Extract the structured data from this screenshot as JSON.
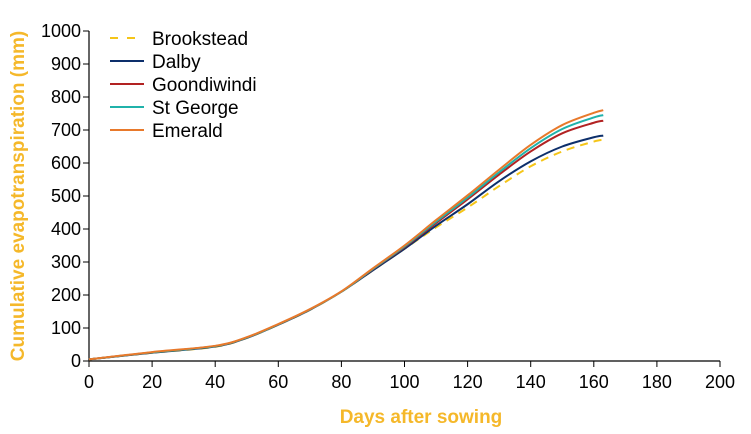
{
  "chart_data": {
    "type": "line",
    "title": "",
    "xlabel": "Days after sowing",
    "ylabel": "Cumulative evapotranspiration (mm)",
    "axis_title_color": "#F5B82A",
    "xlim": [
      0,
      200
    ],
    "ylim": [
      0,
      1000
    ],
    "x_ticks": [
      0,
      20,
      40,
      60,
      80,
      100,
      120,
      140,
      160,
      180,
      200
    ],
    "y_ticks": [
      0,
      100,
      200,
      300,
      400,
      500,
      600,
      700,
      800,
      900,
      1000
    ],
    "grid": false,
    "legend_position": "top-left",
    "series": [
      {
        "name": "Brookstead",
        "color": "#F5C518",
        "dash": "dashed",
        "x": [
          0,
          20,
          40,
          50,
          60,
          70,
          80,
          90,
          100,
          110,
          120,
          130,
          140,
          150,
          160,
          163
        ],
        "y": [
          5,
          25,
          43,
          70,
          110,
          155,
          210,
          275,
          340,
          405,
          465,
          530,
          590,
          635,
          665,
          670
        ]
      },
      {
        "name": "Dalby",
        "color": "#0D2F6B",
        "dash": "solid",
        "x": [
          0,
          20,
          40,
          50,
          60,
          70,
          80,
          90,
          100,
          110,
          120,
          130,
          140,
          150,
          160,
          163
        ],
        "y": [
          5,
          25,
          44,
          70,
          110,
          155,
          210,
          275,
          340,
          410,
          475,
          545,
          605,
          650,
          678,
          683
        ]
      },
      {
        "name": "Goondiwindi",
        "color": "#B22222",
        "dash": "solid",
        "x": [
          0,
          20,
          40,
          50,
          60,
          70,
          80,
          90,
          100,
          110,
          120,
          130,
          140,
          150,
          160,
          163
        ],
        "y": [
          5,
          26,
          45,
          71,
          111,
          156,
          210,
          278,
          345,
          418,
          490,
          565,
          635,
          690,
          722,
          728
        ]
      },
      {
        "name": "St George",
        "color": "#20B2AA",
        "dash": "solid",
        "x": [
          0,
          20,
          40,
          50,
          60,
          70,
          80,
          90,
          100,
          110,
          120,
          130,
          140,
          150,
          160,
          163
        ],
        "y": [
          5,
          26,
          45,
          71,
          111,
          156,
          210,
          279,
          347,
          422,
          495,
          572,
          645,
          703,
          738,
          745
        ]
      },
      {
        "name": "Emerald",
        "color": "#E8792B",
        "dash": "solid",
        "x": [
          0,
          20,
          40,
          50,
          60,
          70,
          80,
          90,
          100,
          110,
          120,
          130,
          140,
          150,
          160,
          163
        ],
        "y": [
          5,
          27,
          46,
          72,
          112,
          157,
          211,
          281,
          350,
          427,
          502,
          580,
          655,
          715,
          752,
          760
        ]
      }
    ]
  }
}
